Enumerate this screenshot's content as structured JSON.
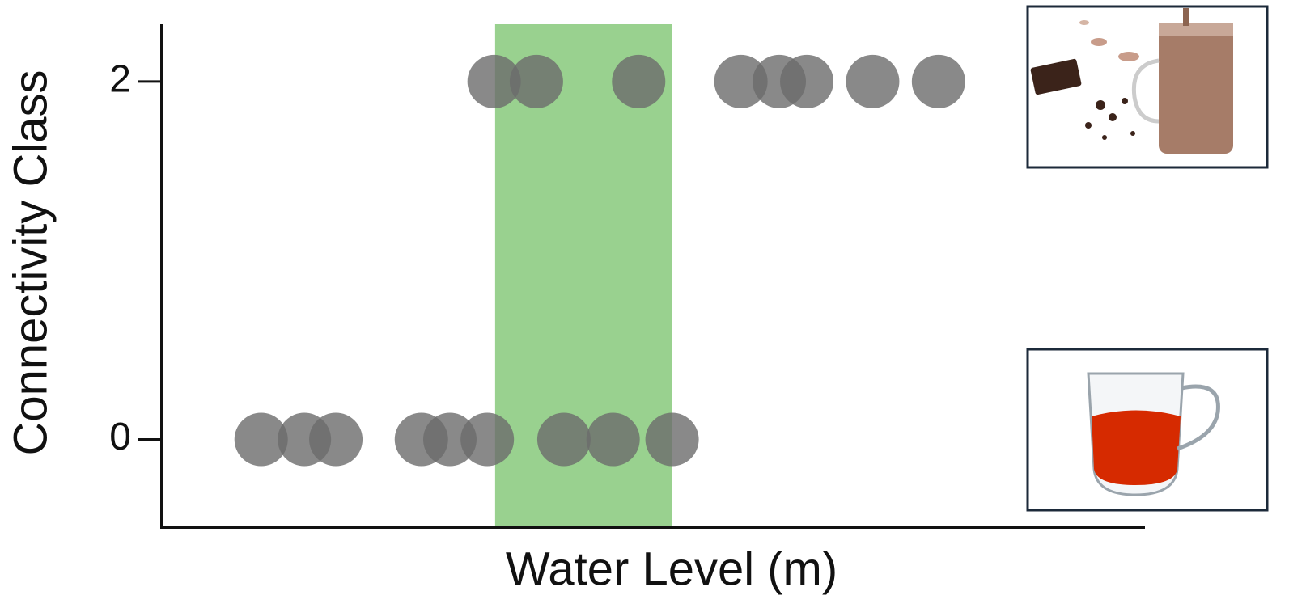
{
  "chart_data": {
    "type": "scatter",
    "xlabel": "Water Level (m)",
    "ylabel": "Connectivity Class",
    "xlim": [
      0,
      100
    ],
    "ylim": [
      -0.49,
      2.32
    ],
    "yticks": [
      0,
      2
    ],
    "highlight": [
      33.9,
      51.9
    ],
    "highlight_color": "#99d18f",
    "color": "#6b6b6b",
    "x": [
      33.8,
      38.1,
      48.5,
      58.9,
      62.8,
      65.6,
      72.3,
      79.0,
      10.1,
      14.5,
      17.7,
      26.4,
      29.3,
      33.1,
      40.9,
      45.9,
      51.9
    ],
    "values": [
      2,
      2,
      2,
      2,
      2,
      2,
      2,
      2,
      0,
      0,
      0,
      0,
      0,
      0,
      0,
      0,
      0
    ]
  }
}
